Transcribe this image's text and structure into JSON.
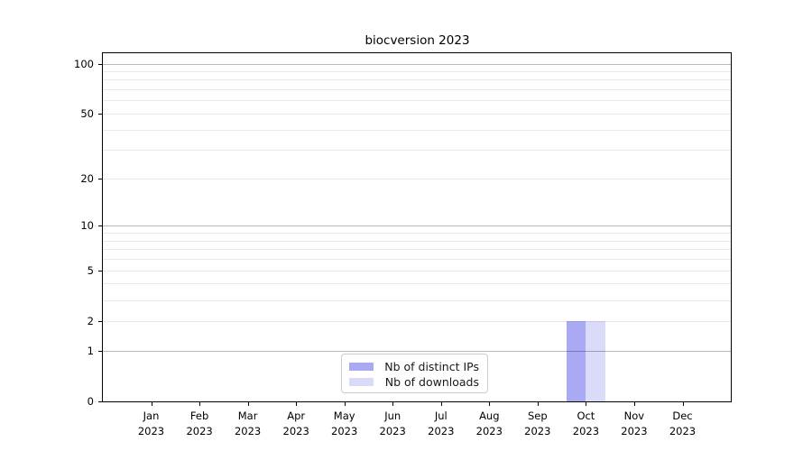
{
  "chart_data": {
    "type": "bar",
    "title": "biocversion 2023",
    "categories": [
      {
        "month": "Jan",
        "year": "2023"
      },
      {
        "month": "Feb",
        "year": "2023"
      },
      {
        "month": "Mar",
        "year": "2023"
      },
      {
        "month": "Apr",
        "year": "2023"
      },
      {
        "month": "May",
        "year": "2023"
      },
      {
        "month": "Jun",
        "year": "2023"
      },
      {
        "month": "Jul",
        "year": "2023"
      },
      {
        "month": "Aug",
        "year": "2023"
      },
      {
        "month": "Sep",
        "year": "2023"
      },
      {
        "month": "Oct",
        "year": "2023"
      },
      {
        "month": "Nov",
        "year": "2023"
      },
      {
        "month": "Dec",
        "year": "2023"
      }
    ],
    "series": [
      {
        "name": "Nb of distinct IPs",
        "color": "#aaaaf4",
        "values": [
          0,
          0,
          0,
          0,
          0,
          0,
          0,
          0,
          0,
          2,
          0,
          0
        ]
      },
      {
        "name": "Nb of downloads",
        "color": "#dadaf9",
        "values": [
          0,
          0,
          0,
          0,
          0,
          0,
          0,
          0,
          0,
          2,
          0,
          0
        ]
      }
    ],
    "yscale": "log1p",
    "ylim": [
      0,
      112
    ],
    "yticks": [
      {
        "value": 0,
        "label": "0"
      },
      {
        "value": 1,
        "label": "1"
      },
      {
        "value": 2,
        "label": "2"
      },
      {
        "value": 5,
        "label": "5"
      },
      {
        "value": 10,
        "label": "10"
      },
      {
        "value": 20,
        "label": "20"
      },
      {
        "value": 50,
        "label": "50"
      },
      {
        "value": 100,
        "label": "100"
      }
    ],
    "major_gridlines": [
      1,
      10,
      100
    ],
    "minor_gridlines": [
      2,
      3,
      4,
      5,
      6,
      7,
      8,
      9,
      20,
      30,
      40,
      50,
      60,
      70,
      80,
      90
    ],
    "grid": true,
    "legend_position": "lower center",
    "xlabel": "",
    "ylabel": ""
  }
}
